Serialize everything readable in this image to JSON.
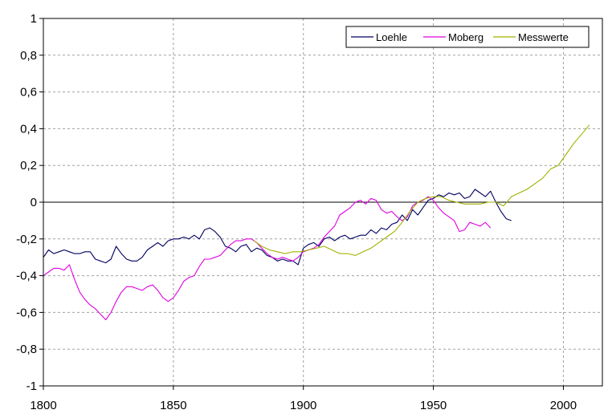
{
  "chart_data": {
    "type": "line",
    "title": "",
    "xlabel": "",
    "ylabel": "",
    "xlim": [
      1800,
      2015
    ],
    "ylim": [
      -1,
      1
    ],
    "x_ticks": [
      "1800",
      "1850",
      "1900",
      "1950",
      "2000"
    ],
    "y_ticks": [
      "1",
      "0,8",
      "0,6",
      "0,4",
      "0,2",
      "0",
      "-0,2",
      "-0,4",
      "-0,6",
      "-0,8",
      "-1"
    ],
    "grid": true,
    "legend_position": "top-right",
    "series": [
      {
        "name": "Loehle",
        "color": "#000060",
        "points": [
          [
            1800,
            -0.3
          ],
          [
            1802,
            -0.26
          ],
          [
            1804,
            -0.28
          ],
          [
            1806,
            -0.27
          ],
          [
            1808,
            -0.26
          ],
          [
            1810,
            -0.27
          ],
          [
            1812,
            -0.28
          ],
          [
            1814,
            -0.28
          ],
          [
            1816,
            -0.27
          ],
          [
            1818,
            -0.27
          ],
          [
            1820,
            -0.31
          ],
          [
            1822,
            -0.32
          ],
          [
            1824,
            -0.33
          ],
          [
            1826,
            -0.31
          ],
          [
            1828,
            -0.24
          ],
          [
            1830,
            -0.28
          ],
          [
            1832,
            -0.31
          ],
          [
            1834,
            -0.32
          ],
          [
            1836,
            -0.32
          ],
          [
            1838,
            -0.3
          ],
          [
            1840,
            -0.26
          ],
          [
            1842,
            -0.24
          ],
          [
            1844,
            -0.22
          ],
          [
            1846,
            -0.24
          ],
          [
            1848,
            -0.21
          ],
          [
            1850,
            -0.2
          ],
          [
            1852,
            -0.2
          ],
          [
            1854,
            -0.19
          ],
          [
            1856,
            -0.2
          ],
          [
            1858,
            -0.18
          ],
          [
            1860,
            -0.2
          ],
          [
            1862,
            -0.15
          ],
          [
            1864,
            -0.14
          ],
          [
            1866,
            -0.16
          ],
          [
            1868,
            -0.19
          ],
          [
            1870,
            -0.24
          ],
          [
            1872,
            -0.25
          ],
          [
            1874,
            -0.27
          ],
          [
            1876,
            -0.24
          ],
          [
            1878,
            -0.23
          ],
          [
            1880,
            -0.27
          ],
          [
            1882,
            -0.25
          ],
          [
            1884,
            -0.26
          ],
          [
            1886,
            -0.29
          ],
          [
            1888,
            -0.3
          ],
          [
            1890,
            -0.32
          ],
          [
            1892,
            -0.31
          ],
          [
            1894,
            -0.32
          ],
          [
            1896,
            -0.32
          ],
          [
            1898,
            -0.34
          ],
          [
            1900,
            -0.25
          ],
          [
            1902,
            -0.23
          ],
          [
            1904,
            -0.22
          ],
          [
            1906,
            -0.24
          ],
          [
            1908,
            -0.2
          ],
          [
            1910,
            -0.19
          ],
          [
            1912,
            -0.21
          ],
          [
            1914,
            -0.19
          ],
          [
            1916,
            -0.18
          ],
          [
            1918,
            -0.2
          ],
          [
            1920,
            -0.19
          ],
          [
            1922,
            -0.18
          ],
          [
            1924,
            -0.18
          ],
          [
            1926,
            -0.15
          ],
          [
            1928,
            -0.17
          ],
          [
            1930,
            -0.14
          ],
          [
            1932,
            -0.15
          ],
          [
            1934,
            -0.12
          ],
          [
            1936,
            -0.11
          ],
          [
            1938,
            -0.07
          ],
          [
            1940,
            -0.1
          ],
          [
            1942,
            -0.04
          ],
          [
            1944,
            -0.07
          ],
          [
            1946,
            -0.03
          ],
          [
            1948,
            0.01
          ],
          [
            1950,
            0.02
          ],
          [
            1952,
            0.04
          ],
          [
            1954,
            0.03
          ],
          [
            1956,
            0.05
          ],
          [
            1958,
            0.04
          ],
          [
            1960,
            0.05
          ],
          [
            1962,
            0.02
          ],
          [
            1964,
            0.03
          ],
          [
            1966,
            0.07
          ],
          [
            1968,
            0.05
          ],
          [
            1970,
            0.03
          ],
          [
            1972,
            0.06
          ],
          [
            1974,
            0.0
          ],
          [
            1976,
            -0.05
          ],
          [
            1978,
            -0.09
          ],
          [
            1980,
            -0.1
          ]
        ]
      },
      {
        "name": "Moberg",
        "color": "#e000e0",
        "points": [
          [
            1800,
            -0.4
          ],
          [
            1802,
            -0.38
          ],
          [
            1804,
            -0.36
          ],
          [
            1806,
            -0.36
          ],
          [
            1808,
            -0.37
          ],
          [
            1810,
            -0.34
          ],
          [
            1812,
            -0.42
          ],
          [
            1814,
            -0.49
          ],
          [
            1816,
            -0.53
          ],
          [
            1818,
            -0.56
          ],
          [
            1820,
            -0.58
          ],
          [
            1822,
            -0.61
          ],
          [
            1824,
            -0.64
          ],
          [
            1826,
            -0.6
          ],
          [
            1828,
            -0.54
          ],
          [
            1830,
            -0.49
          ],
          [
            1832,
            -0.46
          ],
          [
            1834,
            -0.46
          ],
          [
            1836,
            -0.47
          ],
          [
            1838,
            -0.48
          ],
          [
            1840,
            -0.46
          ],
          [
            1842,
            -0.45
          ],
          [
            1844,
            -0.48
          ],
          [
            1846,
            -0.52
          ],
          [
            1848,
            -0.54
          ],
          [
            1850,
            -0.52
          ],
          [
            1852,
            -0.48
          ],
          [
            1854,
            -0.43
          ],
          [
            1856,
            -0.41
          ],
          [
            1858,
            -0.4
          ],
          [
            1860,
            -0.35
          ],
          [
            1862,
            -0.31
          ],
          [
            1864,
            -0.31
          ],
          [
            1866,
            -0.3
          ],
          [
            1868,
            -0.29
          ],
          [
            1870,
            -0.26
          ],
          [
            1872,
            -0.23
          ],
          [
            1874,
            -0.21
          ],
          [
            1876,
            -0.21
          ],
          [
            1878,
            -0.2
          ],
          [
            1880,
            -0.2
          ],
          [
            1882,
            -0.22
          ],
          [
            1884,
            -0.25
          ],
          [
            1886,
            -0.28
          ],
          [
            1888,
            -0.3
          ],
          [
            1890,
            -0.31
          ],
          [
            1892,
            -0.3
          ],
          [
            1894,
            -0.31
          ],
          [
            1896,
            -0.32
          ],
          [
            1898,
            -0.3
          ],
          [
            1900,
            -0.27
          ],
          [
            1902,
            -0.26
          ],
          [
            1904,
            -0.25
          ],
          [
            1906,
            -0.23
          ],
          [
            1908,
            -0.19
          ],
          [
            1910,
            -0.16
          ],
          [
            1912,
            -0.13
          ],
          [
            1914,
            -0.07
          ],
          [
            1916,
            -0.05
          ],
          [
            1918,
            -0.03
          ],
          [
            1920,
            0.0
          ],
          [
            1922,
            0.01
          ],
          [
            1924,
            -0.01
          ],
          [
            1926,
            0.02
          ],
          [
            1928,
            0.01
          ],
          [
            1930,
            -0.04
          ],
          [
            1932,
            -0.06
          ],
          [
            1934,
            -0.05
          ],
          [
            1936,
            -0.08
          ],
          [
            1938,
            -0.1
          ],
          [
            1940,
            -0.08
          ],
          [
            1942,
            -0.02
          ],
          [
            1944,
            0.0
          ],
          [
            1946,
            0.01
          ],
          [
            1948,
            0.03
          ],
          [
            1950,
            0.01
          ],
          [
            1952,
            -0.03
          ],
          [
            1954,
            -0.06
          ],
          [
            1956,
            -0.08
          ],
          [
            1958,
            -0.1
          ],
          [
            1960,
            -0.16
          ],
          [
            1962,
            -0.15
          ],
          [
            1964,
            -0.11
          ],
          [
            1966,
            -0.12
          ],
          [
            1968,
            -0.13
          ],
          [
            1970,
            -0.11
          ],
          [
            1972,
            -0.14
          ]
        ]
      },
      {
        "name": "Messwerte",
        "color": "#a0b000",
        "points": [
          [
            1881,
            -0.21
          ],
          [
            1884,
            -0.24
          ],
          [
            1887,
            -0.26
          ],
          [
            1890,
            -0.27
          ],
          [
            1893,
            -0.28
          ],
          [
            1896,
            -0.27
          ],
          [
            1899,
            -0.27
          ],
          [
            1902,
            -0.26
          ],
          [
            1905,
            -0.25
          ],
          [
            1908,
            -0.24
          ],
          [
            1911,
            -0.26
          ],
          [
            1914,
            -0.28
          ],
          [
            1917,
            -0.28
          ],
          [
            1920,
            -0.29
          ],
          [
            1923,
            -0.27
          ],
          [
            1926,
            -0.25
          ],
          [
            1929,
            -0.22
          ],
          [
            1932,
            -0.19
          ],
          [
            1935,
            -0.16
          ],
          [
            1938,
            -0.11
          ],
          [
            1941,
            -0.05
          ],
          [
            1944,
            0.0
          ],
          [
            1947,
            0.02
          ],
          [
            1950,
            0.03
          ],
          [
            1953,
            0.03
          ],
          [
            1956,
            0.01
          ],
          [
            1959,
            0.0
          ],
          [
            1962,
            -0.01
          ],
          [
            1965,
            -0.01
          ],
          [
            1968,
            -0.01
          ],
          [
            1971,
            0.0
          ],
          [
            1974,
            0.0
          ],
          [
            1977,
            -0.02
          ],
          [
            1980,
            0.03
          ],
          [
            1983,
            0.05
          ],
          [
            1986,
            0.07
          ],
          [
            1989,
            0.1
          ],
          [
            1992,
            0.13
          ],
          [
            1995,
            0.18
          ],
          [
            1998,
            0.2
          ],
          [
            2001,
            0.26
          ],
          [
            2004,
            0.32
          ],
          [
            2007,
            0.37
          ],
          [
            2010,
            0.42
          ]
        ]
      }
    ]
  }
}
